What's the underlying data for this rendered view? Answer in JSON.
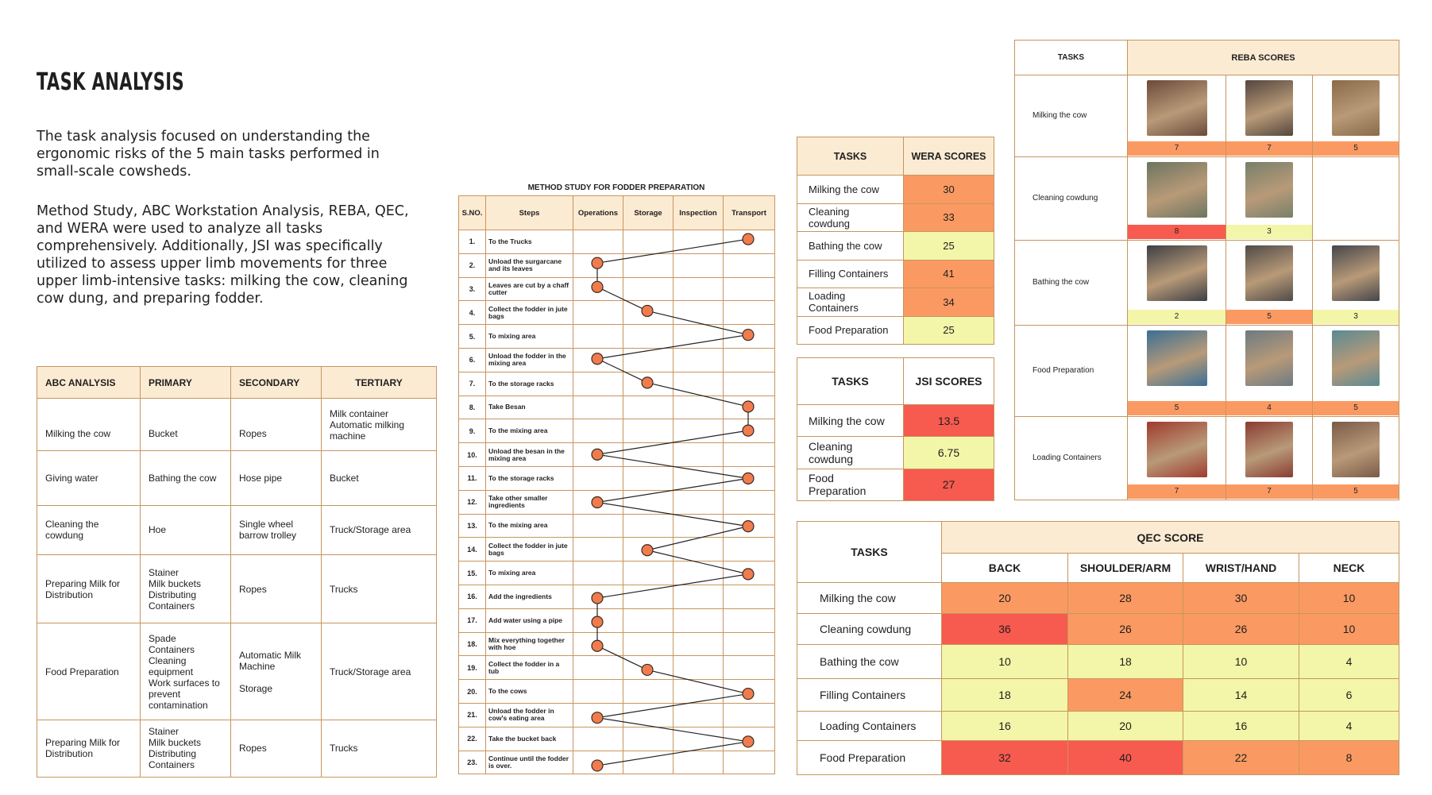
{
  "title": "TASK ANALYSIS",
  "paragraph1": "The task analysis focused on understanding the ergonomic risks of the 5 main tasks performed in small-scale cowsheds.",
  "paragraph2": "Method Study, ABC Workstation Analysis, REBA, QEC, and WERA were used to analyze all tasks comprehensively. Additionally, JSI was specifically utilized to assess upper limb movements for three upper limb-intensive tasks: milking the cow, cleaning cow dung, and preparing fodder.",
  "colors": {
    "red": "#f75a4f",
    "orange": "#fa9a62",
    "lightorange": "#fcb27f",
    "yellow": "#f3f6a8",
    "header": "#fcebd3",
    "border": "#c7955d",
    "dot": "#f07c4e"
  },
  "abc": {
    "headers": [
      "ABC ANALYSIS",
      "PRIMARY",
      "SECONDARY",
      "TERTIARY"
    ],
    "rows": [
      [
        "Milking the cow",
        "Bucket",
        "Ropes",
        "Milk container\nAutomatic milking machine"
      ],
      [
        "Giving water",
        "Bathing the cow",
        "Hose pipe",
        "Bucket"
      ],
      [
        "Cleaning the cowdung",
        "Hoe",
        "Single wheel barrow trolley",
        "Truck/Storage area"
      ],
      [
        "Preparing Milk for Distribution",
        "Stainer\nMilk buckets\nDistributing Containers",
        "Ropes",
        "Trucks"
      ],
      [
        "Food Preparation",
        "Spade\nContainers\nCleaning equipment\nWork surfaces to prevent contamination",
        "Automatic Milk Machine\n\nStorage",
        "Truck/Storage area"
      ],
      [
        "Preparing Milk for Distribution",
        "Stainer\nMilk buckets\nDistributing Containers",
        "Ropes",
        "Trucks"
      ]
    ]
  },
  "method": {
    "title": "METHOD STUDY FOR FODDER PREPARATION",
    "headers": [
      "S.NO.",
      "Steps",
      "Operations",
      "Storage",
      "Inspection",
      "Transport"
    ],
    "steps": [
      {
        "no": "1.",
        "text": "To the Trucks",
        "col": "Transport"
      },
      {
        "no": "2.",
        "text": "Unload the surgarcane and its leaves",
        "col": "Operations"
      },
      {
        "no": "3.",
        "text": "Leaves are cut by a chaff cutter",
        "col": "Operations"
      },
      {
        "no": "4.",
        "text": "Collect the fodder in jute bags",
        "col": "Storage"
      },
      {
        "no": "5.",
        "text": "To mixing area",
        "col": "Transport"
      },
      {
        "no": "6.",
        "text": "Unload the fodder in the mixing area",
        "col": "Operations"
      },
      {
        "no": "7.",
        "text": "To the storage racks",
        "col": "Storage"
      },
      {
        "no": "8.",
        "text": "Take Besan",
        "col": "Transport"
      },
      {
        "no": "9.",
        "text": "To the mixing area",
        "col": "Transport"
      },
      {
        "no": "10.",
        "text": "Unload the besan in the mixing area",
        "col": "Operations"
      },
      {
        "no": "11.",
        "text": "To the storage racks",
        "col": "Transport"
      },
      {
        "no": "12.",
        "text": "Take other smaller ingredients",
        "col": "Operations"
      },
      {
        "no": "13.",
        "text": "To the mixing area",
        "col": "Transport"
      },
      {
        "no": "14.",
        "text": "Collect the fodder in jute bags",
        "col": "Storage"
      },
      {
        "no": "15.",
        "text": "To mixing area",
        "col": "Transport"
      },
      {
        "no": "16.",
        "text": "Add the ingredients",
        "col": "Operations"
      },
      {
        "no": "17.",
        "text": "Add water using a pipe",
        "col": "Operations"
      },
      {
        "no": "18.",
        "text": "Mix everything together with hoe",
        "col": "Operations"
      },
      {
        "no": "19.",
        "text": "Collect the fodder in a tub",
        "col": "Storage"
      },
      {
        "no": "20.",
        "text": "To the cows",
        "col": "Transport"
      },
      {
        "no": "21.",
        "text": "Unload the fodder in cow's eating area",
        "col": "Operations"
      },
      {
        "no": "22.",
        "text": "Take the bucket back",
        "col": "Transport"
      },
      {
        "no": "23.",
        "text": "Continue until the fodder is over.",
        "col": "Operations"
      }
    ]
  },
  "wera": {
    "headers": [
      "TASKS",
      "WERA SCORES"
    ],
    "rows": [
      {
        "task": "Milking the cow",
        "score": "30",
        "level": "orange"
      },
      {
        "task": "Cleaning cowdung",
        "score": "33",
        "level": "orange"
      },
      {
        "task": "Bathing the cow",
        "score": "25",
        "level": "yellow"
      },
      {
        "task": "Filling Containers",
        "score": "41",
        "level": "orange"
      },
      {
        "task": "Loading Containers",
        "score": "34",
        "level": "orange"
      },
      {
        "task": "Food Preparation",
        "score": "25",
        "level": "yellow"
      }
    ]
  },
  "jsi": {
    "headers": [
      "TASKS",
      "JSI SCORES"
    ],
    "rows": [
      {
        "task": "Milking the cow",
        "score": "13.5",
        "level": "red"
      },
      {
        "task": "Cleaning cowdung",
        "score": "6.75",
        "level": "yellow"
      },
      {
        "task": "Food Preparation",
        "score": "27",
        "level": "red"
      }
    ]
  },
  "reba": {
    "headers": [
      "TASKS",
      "REBA SCORES"
    ],
    "rows": [
      {
        "task": "Milking the cow",
        "scores": [
          {
            "v": "7",
            "level": "orange"
          },
          {
            "v": "7",
            "level": "orange"
          },
          {
            "v": "5",
            "level": "orange"
          }
        ]
      },
      {
        "task": "Cleaning cowdung",
        "scores": [
          {
            "v": "8",
            "level": "red"
          },
          {
            "v": "3",
            "level": "yellow"
          }
        ]
      },
      {
        "task": "Bathing the cow",
        "scores": [
          {
            "v": "2",
            "level": "yellow"
          },
          {
            "v": "5",
            "level": "orange"
          },
          {
            "v": "3",
            "level": "yellow"
          }
        ]
      },
      {
        "task": "Food Preparation",
        "scores": [
          {
            "v": "5",
            "level": "orange"
          },
          {
            "v": "4",
            "level": "orange"
          },
          {
            "v": "5",
            "level": "orange"
          }
        ]
      },
      {
        "task": "Loading Containers",
        "scores": [
          {
            "v": "7",
            "level": "orange"
          },
          {
            "v": "7",
            "level": "orange"
          },
          {
            "v": "5",
            "level": "orange"
          }
        ]
      }
    ]
  },
  "qec": {
    "title": "QEC SCORE",
    "tasks_header": "TASKS",
    "columns": [
      "BACK",
      "SHOULDER/ARM",
      "WRIST/HAND",
      "NECK"
    ],
    "rows": [
      {
        "task": "Milking the cow",
        "cells": [
          {
            "v": "20",
            "level": "orange"
          },
          {
            "v": "28",
            "level": "orange"
          },
          {
            "v": "30",
            "level": "orange"
          },
          {
            "v": "10",
            "level": "orange"
          }
        ]
      },
      {
        "task": "Cleaning cowdung",
        "cells": [
          {
            "v": "36",
            "level": "red"
          },
          {
            "v": "26",
            "level": "orange"
          },
          {
            "v": "26",
            "level": "orange"
          },
          {
            "v": "10",
            "level": "orange"
          }
        ]
      },
      {
        "task": "Bathing the cow",
        "cells": [
          {
            "v": "10",
            "level": "yellow"
          },
          {
            "v": "18",
            "level": "yellow"
          },
          {
            "v": "10",
            "level": "yellow"
          },
          {
            "v": "4",
            "level": "yellow"
          }
        ]
      },
      {
        "task": "Filling Containers",
        "cells": [
          {
            "v": "18",
            "level": "yellow"
          },
          {
            "v": "24",
            "level": "orange"
          },
          {
            "v": "14",
            "level": "yellow"
          },
          {
            "v": "6",
            "level": "yellow"
          }
        ]
      },
      {
        "task": "Loading Containers",
        "cells": [
          {
            "v": "16",
            "level": "yellow"
          },
          {
            "v": "20",
            "level": "yellow"
          },
          {
            "v": "16",
            "level": "yellow"
          },
          {
            "v": "4",
            "level": "yellow"
          }
        ]
      },
      {
        "task": "Food Preparation",
        "cells": [
          {
            "v": "32",
            "level": "red"
          },
          {
            "v": "40",
            "level": "red"
          },
          {
            "v": "22",
            "level": "orange"
          },
          {
            "v": "8",
            "level": "orange"
          }
        ]
      }
    ]
  }
}
